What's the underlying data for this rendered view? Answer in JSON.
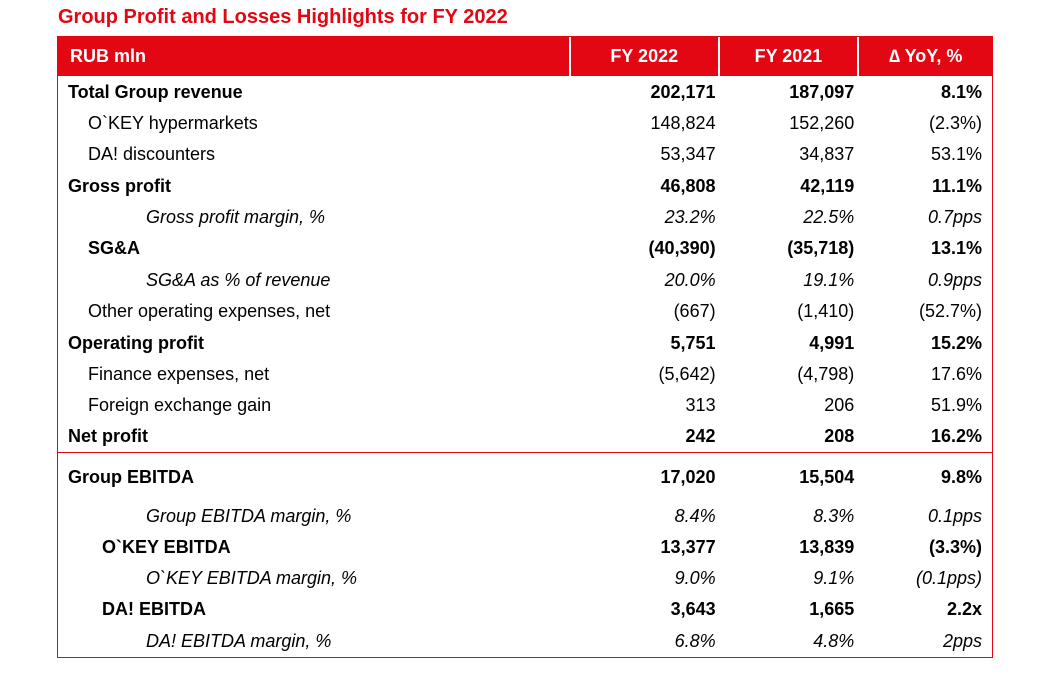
{
  "title": "Group Profit and Losses Highlights for FY 2022",
  "accent_color": "#e30613",
  "header": {
    "label": "RUB mln",
    "fy2022": "FY 2022",
    "fy2021": "FY 2021",
    "yoy": "∆ YoY, %"
  },
  "rows": [
    {
      "label": "Total Group revenue",
      "fy2022": "202,171",
      "fy2021": "187,097",
      "yoy": "8.1%"
    },
    {
      "label": "O`KEY hypermarkets",
      "fy2022": "148,824",
      "fy2021": "152,260",
      "yoy": "(2.3%)"
    },
    {
      "label": "DA! discounters",
      "fy2022": "53,347",
      "fy2021": "34,837",
      "yoy": "53.1%"
    },
    {
      "label": "Gross profit",
      "fy2022": "46,808",
      "fy2021": "42,119",
      "yoy": "11.1%"
    },
    {
      "label": "Gross profit margin, %",
      "fy2022": "23.2%",
      "fy2021": "22.5%",
      "yoy": "0.7pps"
    },
    {
      "label": "SG&A",
      "fy2022": "(40,390)",
      "fy2021": "(35,718)",
      "yoy": "13.1%"
    },
    {
      "label": "SG&A as % of revenue",
      "fy2022": "20.0%",
      "fy2021": "19.1%",
      "yoy": "0.9pps"
    },
    {
      "label": "Other operating expenses, net",
      "fy2022": "(667)",
      "fy2021": "(1,410)",
      "yoy": "(52.7%)"
    },
    {
      "label": "Operating profit",
      "fy2022": "5,751",
      "fy2021": "4,991",
      "yoy": "15.2%"
    },
    {
      "label": "Finance expenses, net",
      "fy2022": "(5,642)",
      "fy2021": "(4,798)",
      "yoy": "17.6%"
    },
    {
      "label": "Foreign exchange gain",
      "fy2022": "313",
      "fy2021": "206",
      "yoy": "51.9%"
    },
    {
      "label": "Net profit",
      "fy2022": "242",
      "fy2021": "208",
      "yoy": "16.2%"
    },
    {
      "label": "Group EBITDA",
      "fy2022": "17,020",
      "fy2021": "15,504",
      "yoy": "9.8%"
    },
    {
      "label": "Group EBITDA margin, %",
      "fy2022": "8.4%",
      "fy2021": "8.3%",
      "yoy": "0.1pps"
    },
    {
      "label": "O`KEY EBITDA",
      "fy2022": "13,377",
      "fy2021": "13,839",
      "yoy": "(3.3%)"
    },
    {
      "label": "O`KEY EBITDA margin, %",
      "fy2022": "9.0%",
      "fy2021": "9.1%",
      "yoy": "(0.1pps)"
    },
    {
      "label": "DA! EBITDA",
      "fy2022": "3,643",
      "fy2021": "1,665",
      "yoy": "2.2x"
    },
    {
      "label": "DA! EBITDA margin, %",
      "fy2022": "6.8%",
      "fy2021": "4.8%",
      "yoy": "2pps"
    }
  ]
}
